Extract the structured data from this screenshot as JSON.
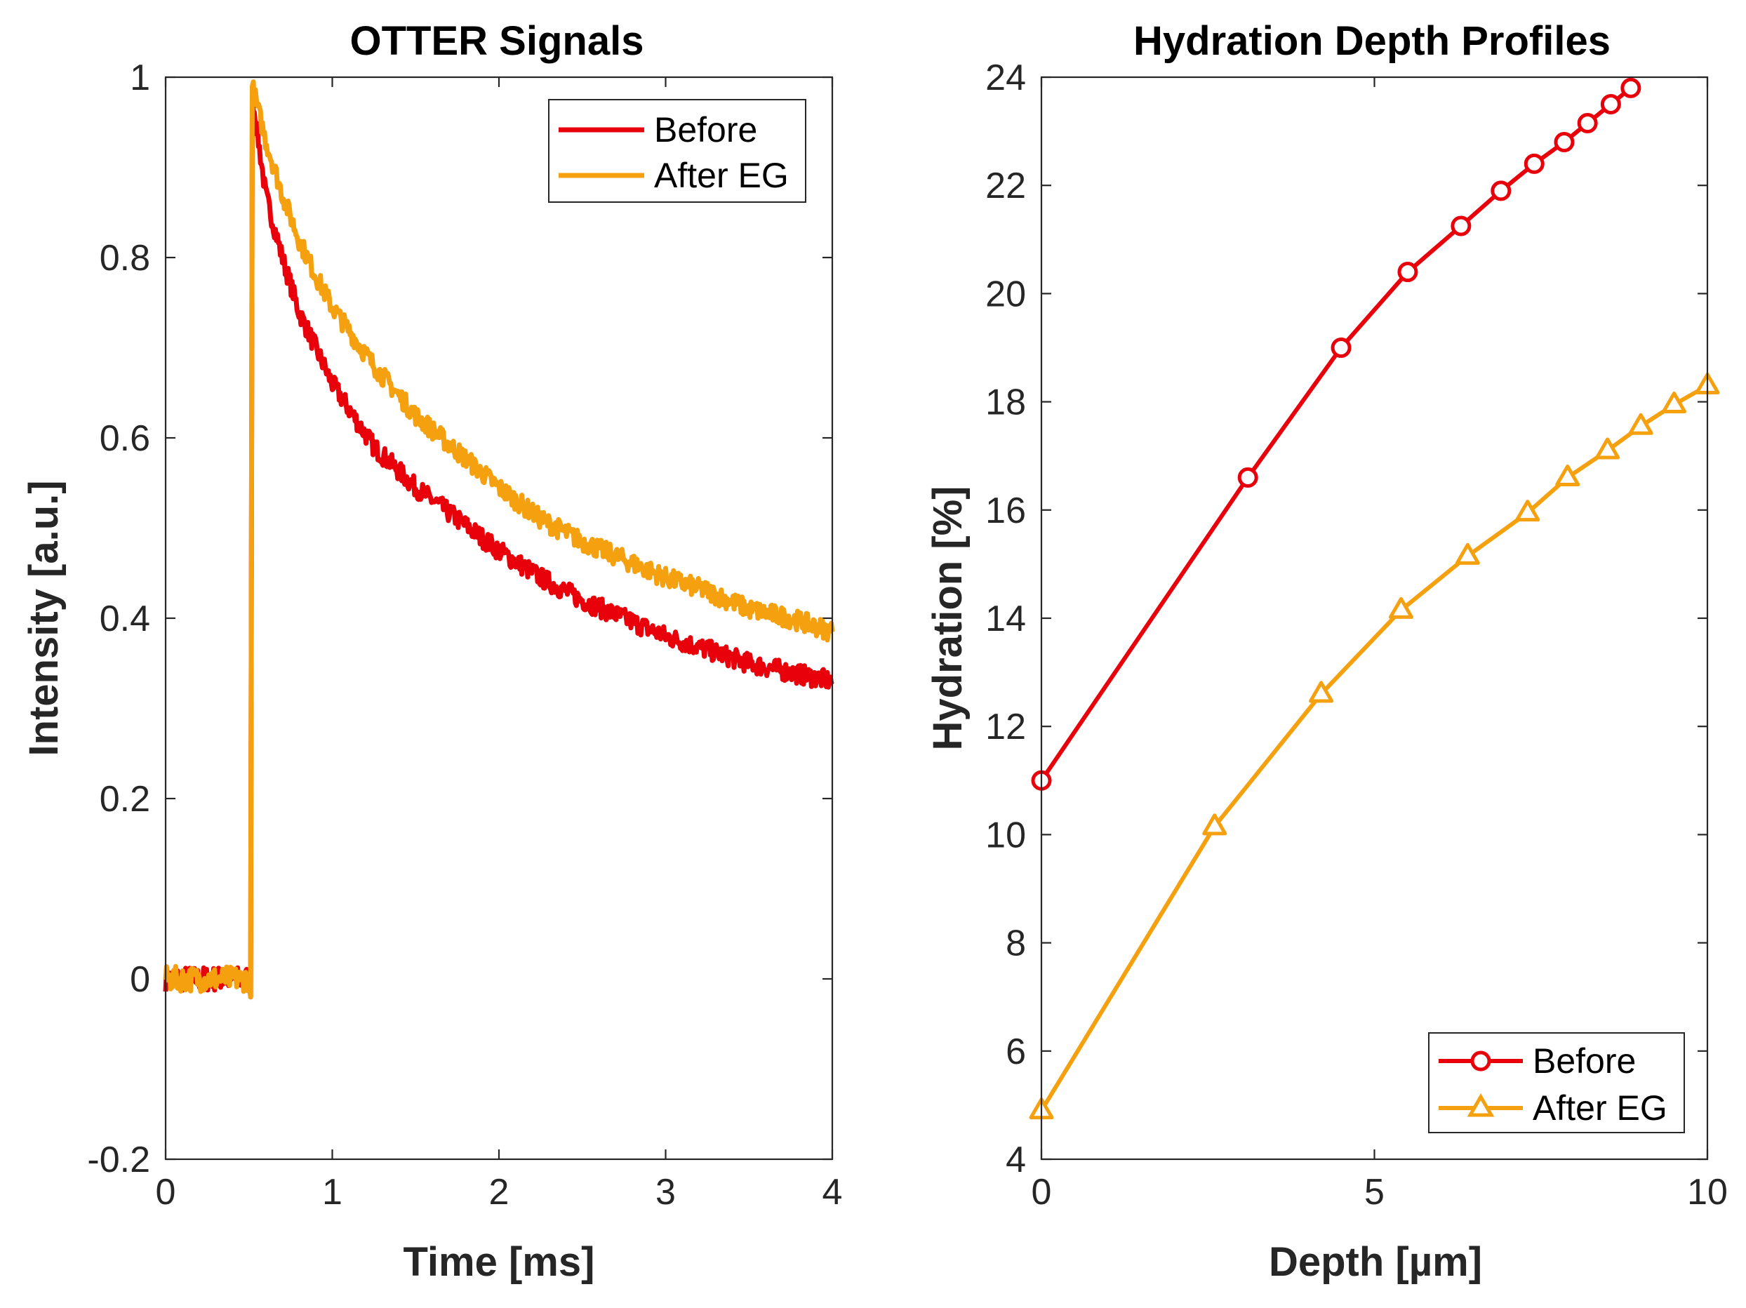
{
  "chart_data": [
    {
      "type": "line",
      "title": "OTTER Signals",
      "xlabel": "Time [ms]",
      "ylabel": "Intensity [a.u.]",
      "xlim": [
        0,
        4
      ],
      "ylim": [
        -0.2,
        1
      ],
      "xticks": [
        "0",
        "1",
        "2",
        "3",
        "4"
      ],
      "yticks": [
        "-0.2",
        "0",
        "0.2",
        "0.4",
        "0.6",
        "0.8",
        "1"
      ],
      "legend_position": "top-right",
      "series": [
        {
          "name": "Before",
          "color": "#e8000b",
          "baseline_level": 0,
          "step_time": 0.52,
          "peak": 0.98,
          "x": [
            0.52,
            0.6,
            0.7,
            0.8,
            0.9,
            1.0,
            1.25,
            1.5,
            1.75,
            2.0,
            2.25,
            2.5,
            2.75,
            3.0,
            3.25,
            3.5,
            3.75,
            4.0
          ],
          "y": [
            0.98,
            0.87,
            0.8,
            0.74,
            0.7,
            0.66,
            0.59,
            0.545,
            0.51,
            0.475,
            0.445,
            0.42,
            0.4,
            0.38,
            0.365,
            0.35,
            0.34,
            0.33
          ]
        },
        {
          "name": "After EG",
          "color": "#f5a00e",
          "baseline_level": 0,
          "step_time": 0.52,
          "peak": 0.99,
          "x": [
            0.52,
            0.6,
            0.7,
            0.8,
            0.9,
            1.0,
            1.25,
            1.5,
            1.75,
            2.0,
            2.25,
            2.5,
            2.75,
            3.0,
            3.25,
            3.5,
            3.75,
            4.0
          ],
          "y": [
            0.99,
            0.93,
            0.87,
            0.82,
            0.78,
            0.745,
            0.68,
            0.625,
            0.585,
            0.545,
            0.51,
            0.485,
            0.465,
            0.445,
            0.43,
            0.41,
            0.4,
            0.385
          ]
        }
      ]
    },
    {
      "type": "line",
      "title": "Hydration Depth Profiles",
      "xlabel": "Depth [µm]",
      "ylabel": "Hydration [%]",
      "xlim": [
        0,
        10
      ],
      "ylim": [
        4,
        24
      ],
      "xticks": [
        "0",
        "5",
        "10"
      ],
      "yticks": [
        "4",
        "6",
        "8",
        "10",
        "12",
        "14",
        "16",
        "18",
        "20",
        "22",
        "24"
      ],
      "legend_position": "bottom-right",
      "series": [
        {
          "name": "Before",
          "color": "#e8000b",
          "marker": "circle",
          "x": [
            0,
            3.1,
            4.5,
            5.5,
            6.3,
            6.9,
            7.4,
            7.85,
            8.2,
            8.55,
            8.85
          ],
          "y": [
            11.0,
            16.6,
            19.0,
            20.4,
            21.25,
            21.9,
            22.4,
            22.8,
            23.15,
            23.5,
            23.8
          ]
        },
        {
          "name": "After EG",
          "color": "#f5a00e",
          "marker": "triangle",
          "x": [
            0,
            2.6,
            4.2,
            5.4,
            6.4,
            7.3,
            7.9,
            8.5,
            9.0,
            9.5,
            10.0
          ],
          "y": [
            4.9,
            10.15,
            12.6,
            14.15,
            15.15,
            15.95,
            16.6,
            17.1,
            17.55,
            17.95,
            18.3
          ]
        }
      ]
    }
  ]
}
